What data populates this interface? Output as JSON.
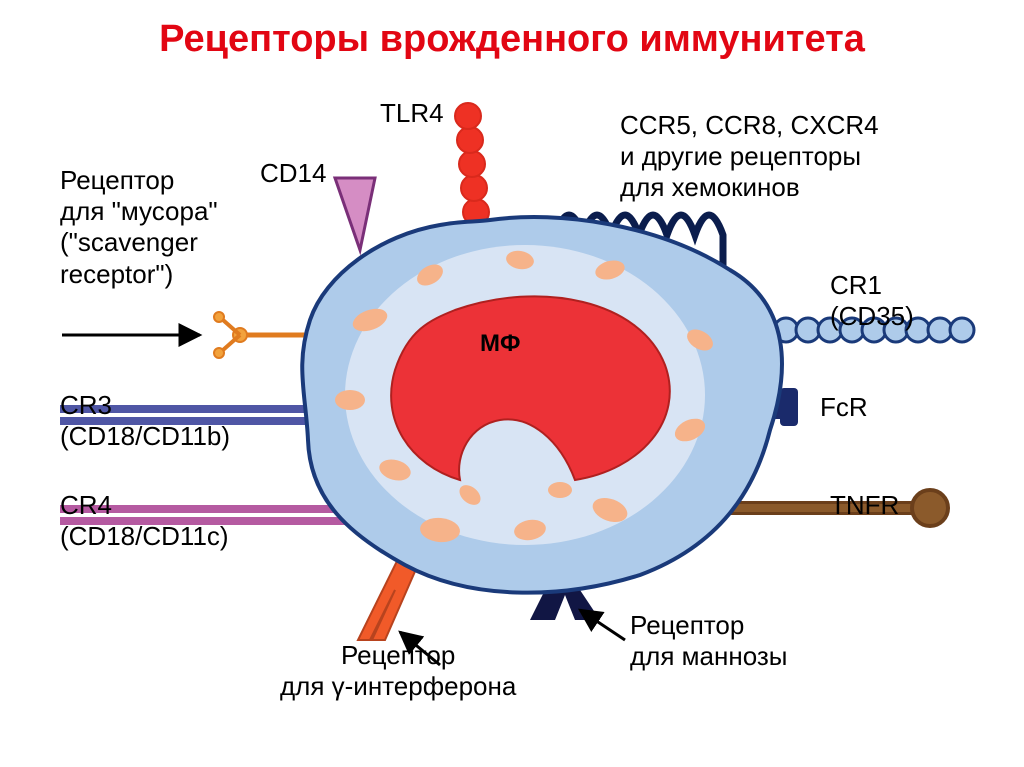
{
  "title": {
    "text": "Рецепторы врожденного иммунитета",
    "color": "#e20613",
    "fontsize": 38
  },
  "diagram": {
    "type": "infographic",
    "background": "#ffffff",
    "cell": {
      "fill": "#aecbea",
      "stroke": "#1a3a7a",
      "stroke_width": 4,
      "inner_fill": "#dfe9f6",
      "nucleus_fill": "#ec3237",
      "organelle_fill": "#f6b38a",
      "label": "МФ",
      "label_color": "#000000",
      "label_fontsize": 24
    },
    "labels": {
      "tlr4": "TLR4",
      "cd14": "CD14",
      "scavenger": "Рецептор\nдля \"мусора\"\n(\"scavenger\nreceptor\")",
      "cr3": "CR3\n(CD18/CD11b)",
      "cr4": "CR4\n(CD18/CD11c)",
      "ifng": "Рецептор\nдля γ-интерферона",
      "mannose": "Рецептор\nдля маннозы",
      "tnfr": "TNFR",
      "fcr": "FcR",
      "cr1": "CR1\n(CD35)",
      "chemokines": "CCR5, CCR8, CXCR4\nи другие рецепторы\nдля хемокинов"
    },
    "label_style": {
      "color": "#000000",
      "fontsize": 26,
      "fontsize_sub": 24
    },
    "receptors": {
      "tlr4_beads": "#ee3124",
      "tlr4_stem": "#d9291c",
      "cd14_fill": "#d58dc4",
      "cd14_stroke": "#7a2f78",
      "scavenger_stroke": "#e07b1f",
      "scavenger_fill": "#f2a23c",
      "cr3_outer": "#4f56a5",
      "cr3_inner": "#ffffff",
      "cr4_outer": "#b55aa1",
      "cr4_inner": "#ffffff",
      "ifng_fill": "#f15a29",
      "ifng_stroke": "#b8431e",
      "mannose_fill": "#111644",
      "chemokine_stroke": "#0b1d4d",
      "fcr_fill": "#1a2a6b",
      "tnfr_stroke": "#6b3f1b",
      "tnfr_fill": "#8b5a2b",
      "cr1_bead": "#aecbea",
      "cr1_stroke": "#1a3a7a"
    },
    "arrow_color": "#000000"
  }
}
